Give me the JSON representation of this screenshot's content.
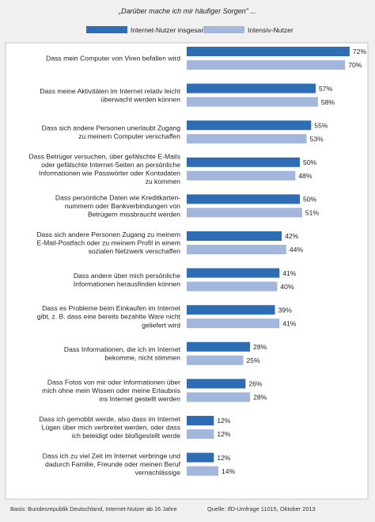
{
  "chart_data": {
    "type": "bar",
    "orientation": "horizontal",
    "title": "„Darüber mache ich mir häufiger Sorgen\" ...",
    "xlim": [
      0,
      100
    ],
    "unit": "%",
    "legend_position": "top",
    "series": [
      {
        "name": "Internet-Nutzer insgesamt",
        "color": "#2e6db3",
        "values": [
          72,
          57,
          55,
          50,
          50,
          42,
          41,
          39,
          28,
          26,
          12,
          12
        ]
      },
      {
        "name": "Intensiv-Nutzer",
        "color": "#a3b6dc",
        "values": [
          70,
          58,
          53,
          48,
          51,
          44,
          40,
          41,
          25,
          28,
          12,
          14
        ]
      }
    ],
    "categories": [
      [
        "Dass mein Computer von Viren befallen wird"
      ],
      [
        "Dass meine Aktivitäten im Internet relativ leicht",
        "überwacht werden können"
      ],
      [
        "Dass sich andere Personen unerlaubt Zugang",
        "zu meinem Computer verschaffen"
      ],
      [
        "Dass Betrüger versuchen, über gefälschte E-Mails",
        "oder gefälschte Internet-Seiten an persönliche",
        "Informationen wie Passwörter oder Kontodaten",
        "zu kommen"
      ],
      [
        "Dass persönliche Daten wie Kreditkarten-",
        "nummern oder Bankverbindungen von",
        "Betrügern missbraucht werden"
      ],
      [
        "Dass sich andere Personen Zugang zu meinem",
        "E-Mail-Postfach oder zu meinem Profil in einem",
        "sozialen Netzwerk verschaffen"
      ],
      [
        "Dass andere über mich persönliche",
        "Informationen herausfinden können"
      ],
      [
        "Dass es Probleme beim Einkaufen im Internet",
        "gibt, z. B. dass eine bereits bezahlte Ware nicht",
        "geliefert wird"
      ],
      [
        "Dass Informationen, die ich im Internet",
        "bekomme, nicht stimmen"
      ],
      [
        "Dass Fotos von mir oder Informationen über",
        "mich ohne mein Wissen oder meine Erlaubnis",
        "ins Internet gestellt werden"
      ],
      [
        "Dass ich gemobbt werde, also dass im Internet",
        "Lügen über mich verbreitet werden, oder dass",
        "ich beleidigt oder bloßgestellt werde"
      ],
      [
        "Dass ich zu viel Zeit im Internet verbringe und",
        "dadurch Familie, Freunde oder meinen Beruf",
        "vernachlässige"
      ]
    ],
    "grid": false
  },
  "footer": {
    "basis": "Basis: Bundesrepublik Deutschland, Internet-Nutzer ab 16 Jahre",
    "source": "Quelle: IfD-Umfrage 11015, Oktober 2013"
  }
}
